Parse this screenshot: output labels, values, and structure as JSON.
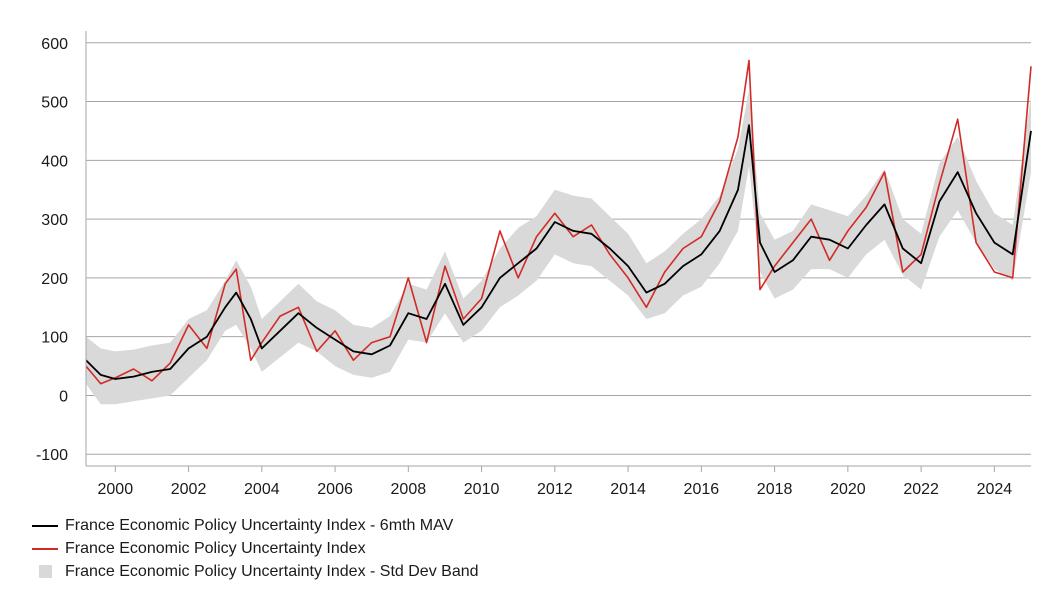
{
  "chart_data": {
    "type": "line",
    "title": "",
    "xlabel": "",
    "ylabel": "",
    "xlim": [
      1999.2,
      2025.0
    ],
    "ylim": [
      -120,
      620
    ],
    "yticks": [
      -100,
      0,
      100,
      200,
      300,
      400,
      500,
      600
    ],
    "ytick_labels": [
      "-100",
      "0",
      "100",
      "200",
      "300",
      "400",
      "500",
      "600"
    ],
    "xticks": [
      2000,
      2002,
      2004,
      2006,
      2008,
      2010,
      2012,
      2014,
      2016,
      2018,
      2020,
      2022,
      2024
    ],
    "xtick_labels": [
      "2000",
      "2002",
      "2004",
      "2006",
      "2008",
      "2010",
      "2012",
      "2014",
      "2016",
      "2018",
      "2020",
      "2022",
      "2024"
    ],
    "grid": "horizontal",
    "legend_position": "bottom-left",
    "colors": {
      "mav": "#000000",
      "index": "#d22b26",
      "band": "#d9d9d9",
      "grid": "#a6a6a6"
    },
    "x": [
      1999.2,
      1999.6,
      2000.0,
      2000.5,
      2001.0,
      2001.5,
      2002.0,
      2002.5,
      2003.0,
      2003.3,
      2003.7,
      2004.0,
      2004.5,
      2005.0,
      2005.5,
      2006.0,
      2006.5,
      2007.0,
      2007.5,
      2008.0,
      2008.5,
      2009.0,
      2009.5,
      2010.0,
      2010.5,
      2011.0,
      2011.5,
      2012.0,
      2012.5,
      2013.0,
      2013.5,
      2014.0,
      2014.5,
      2015.0,
      2015.5,
      2016.0,
      2016.5,
      2017.0,
      2017.3,
      2017.6,
      2018.0,
      2018.5,
      2019.0,
      2019.5,
      2020.0,
      2020.5,
      2021.0,
      2021.5,
      2022.0,
      2022.5,
      2023.0,
      2023.5,
      2024.0,
      2024.5,
      2025.0
    ],
    "series": [
      {
        "name": "France Economic Policy Uncertainty Index - 6mth MAV",
        "values": [
          60,
          35,
          28,
          32,
          40,
          45,
          80,
          100,
          150,
          175,
          130,
          80,
          110,
          140,
          115,
          95,
          75,
          70,
          85,
          140,
          130,
          190,
          120,
          150,
          200,
          225,
          250,
          295,
          280,
          275,
          250,
          220,
          175,
          190,
          220,
          240,
          280,
          350,
          460,
          260,
          210,
          230,
          270,
          265,
          250,
          290,
          325,
          250,
          225,
          330,
          380,
          310,
          260,
          240,
          450
        ]
      },
      {
        "name": "France Economic Policy Uncertainty Index",
        "values": [
          50,
          20,
          30,
          45,
          25,
          55,
          120,
          80,
          190,
          215,
          60,
          90,
          135,
          150,
          75,
          110,
          60,
          90,
          100,
          200,
          90,
          220,
          130,
          165,
          280,
          200,
          270,
          310,
          270,
          290,
          240,
          200,
          150,
          210,
          250,
          270,
          330,
          440,
          570,
          180,
          220,
          260,
          300,
          230,
          280,
          320,
          380,
          210,
          240,
          360,
          470,
          260,
          210,
          200,
          560
        ]
      },
      {
        "name": "France Economic Policy Uncertainty Index - Std Dev Band",
        "type": "band",
        "lower": [
          20,
          -15,
          -15,
          -10,
          -5,
          0,
          30,
          60,
          110,
          120,
          80,
          40,
          65,
          90,
          75,
          50,
          35,
          30,
          40,
          95,
          90,
          140,
          90,
          110,
          150,
          170,
          195,
          240,
          225,
          220,
          195,
          170,
          130,
          140,
          170,
          185,
          225,
          280,
          390,
          210,
          165,
          180,
          215,
          215,
          200,
          240,
          265,
          205,
          180,
          270,
          315,
          260,
          215,
          195,
          380
        ],
        "upper": [
          100,
          80,
          75,
          78,
          85,
          90,
          130,
          145,
          195,
          230,
          185,
          130,
          160,
          190,
          160,
          145,
          120,
          115,
          135,
          190,
          180,
          245,
          165,
          195,
          250,
          285,
          305,
          350,
          340,
          335,
          305,
          275,
          225,
          245,
          275,
          300,
          340,
          420,
          520,
          310,
          265,
          280,
          325,
          315,
          305,
          340,
          385,
          300,
          275,
          395,
          440,
          365,
          310,
          290,
          510
        ]
      }
    ]
  },
  "legend": {
    "items": [
      {
        "label": "France Economic Policy Uncertainty Index - 6mth MAV",
        "color": "#000000"
      },
      {
        "label": "France Economic Policy Uncertainty Index",
        "color": "#d22b26"
      },
      {
        "label": "France Economic Policy Uncertainty Index - Std Dev Band",
        "color": "#d9d9d9"
      }
    ]
  }
}
